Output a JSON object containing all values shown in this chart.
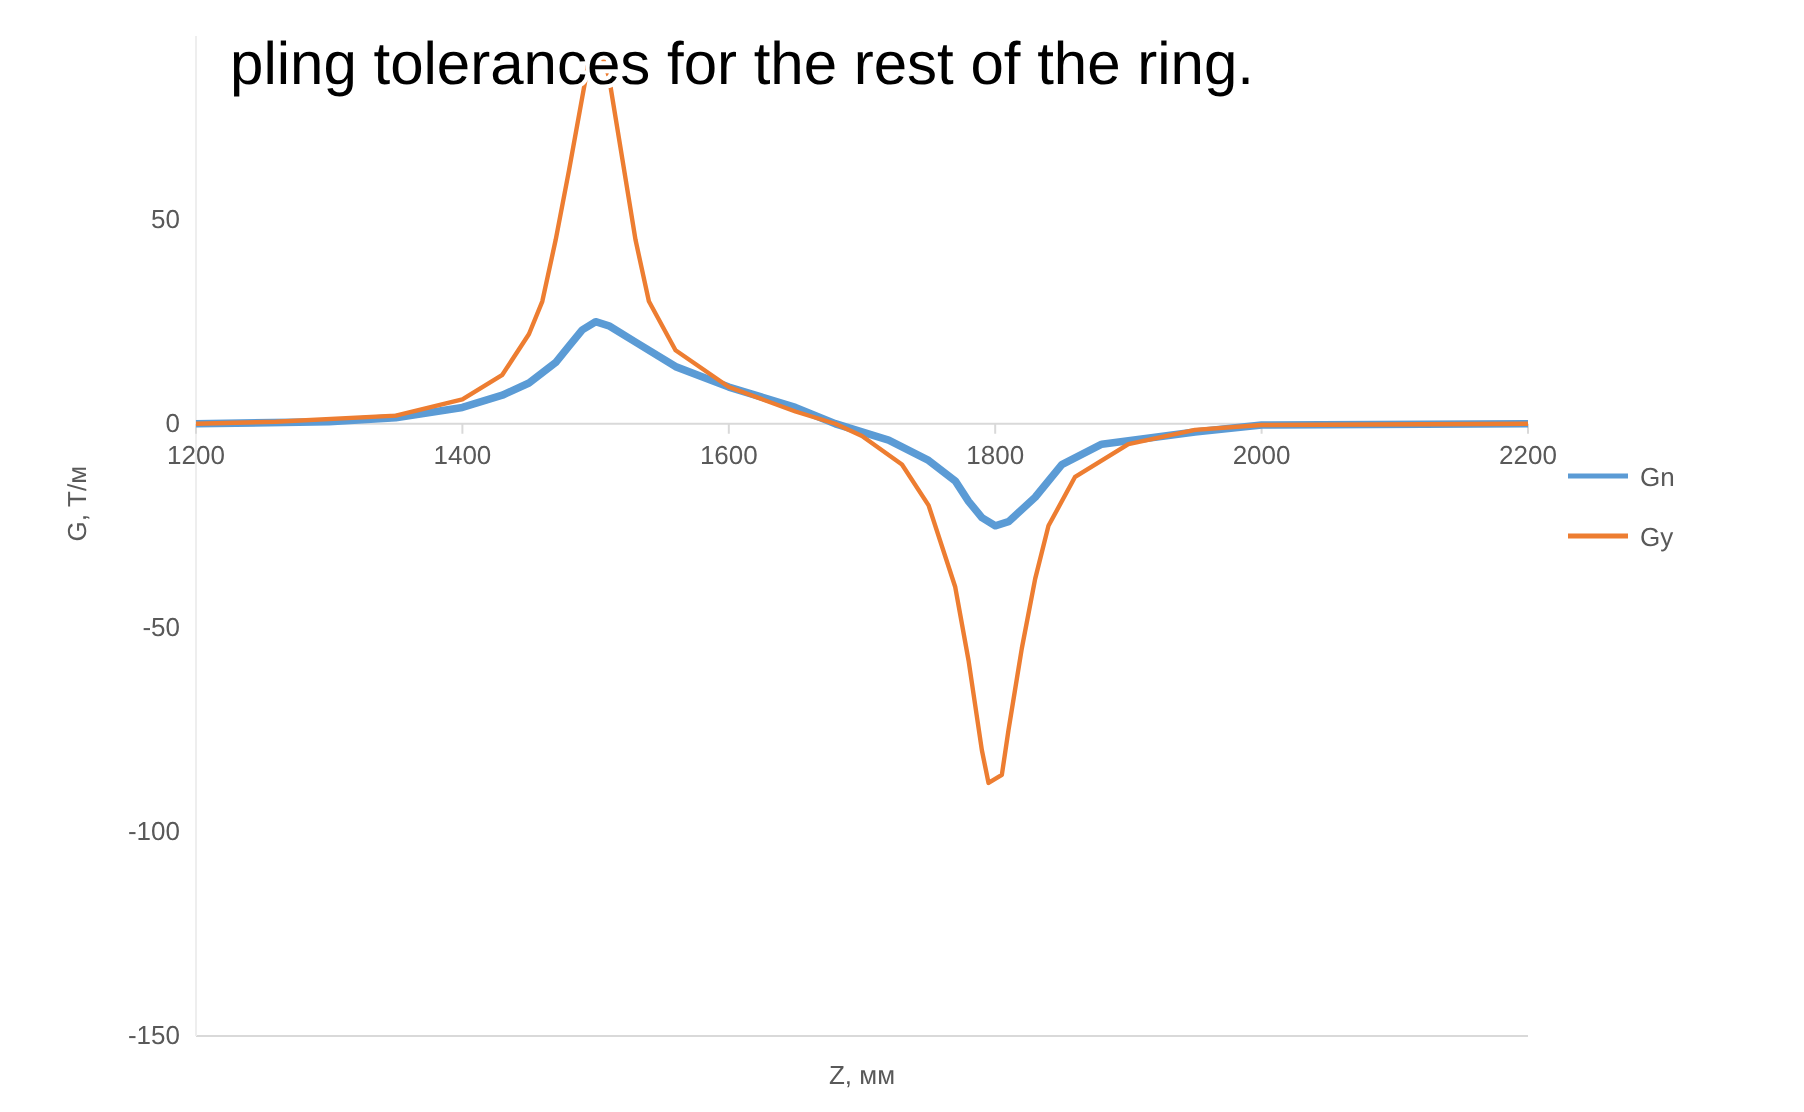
{
  "chart_data": {
    "type": "line",
    "xlabel": "Z, мм",
    "ylabel": "G, Т/м",
    "annotations": [
      "pling tolerances for the rest of the ring."
    ],
    "xlim": [
      1200,
      2200
    ],
    "xticks": [
      1200,
      1400,
      1600,
      1800,
      2000,
      2200
    ],
    "ylim": [
      -150,
      95
    ],
    "yticks": [
      -150,
      -100,
      -50,
      0,
      50
    ],
    "grid": false,
    "legend": "right",
    "series": [
      {
        "name": "Gn",
        "color": "#5b9bd5",
        "x": [
          1200,
          1300,
          1350,
          1400,
          1430,
          1450,
          1470,
          1480,
          1490,
          1500,
          1510,
          1530,
          1560,
          1600,
          1650,
          1680,
          1720,
          1750,
          1770,
          1780,
          1790,
          1800,
          1810,
          1820,
          1830,
          1850,
          1880,
          1950,
          2000,
          2200
        ],
        "values": [
          0,
          0.5,
          1.5,
          4,
          7,
          10,
          15,
          19,
          23,
          25,
          24,
          20,
          14,
          9,
          4,
          0,
          -4,
          -9,
          -14,
          -19,
          -23,
          -25,
          -24,
          -21,
          -18,
          -10,
          -5,
          -2,
          -0.3,
          0
        ]
      },
      {
        "name": "Gy",
        "color": "#ed7d31",
        "x": [
          1200,
          1260,
          1350,
          1400,
          1430,
          1450,
          1460,
          1470,
          1480,
          1490,
          1495,
          1505,
          1510,
          1520,
          1530,
          1540,
          1560,
          1600,
          1650,
          1680,
          1700,
          1730,
          1750,
          1770,
          1780,
          1790,
          1795,
          1805,
          1810,
          1820,
          1830,
          1840,
          1860,
          1900,
          1950,
          2000,
          2200
        ],
        "values": [
          0,
          0.5,
          2,
          6,
          12,
          22,
          30,
          45,
          62,
          80,
          89,
          90,
          85,
          65,
          45,
          30,
          18,
          9,
          3,
          0,
          -3,
          -10,
          -20,
          -40,
          -58,
          -80,
          -88,
          -86,
          -75,
          -55,
          -38,
          -25,
          -13,
          -5,
          -1.5,
          -0.3,
          0
        ]
      }
    ]
  }
}
